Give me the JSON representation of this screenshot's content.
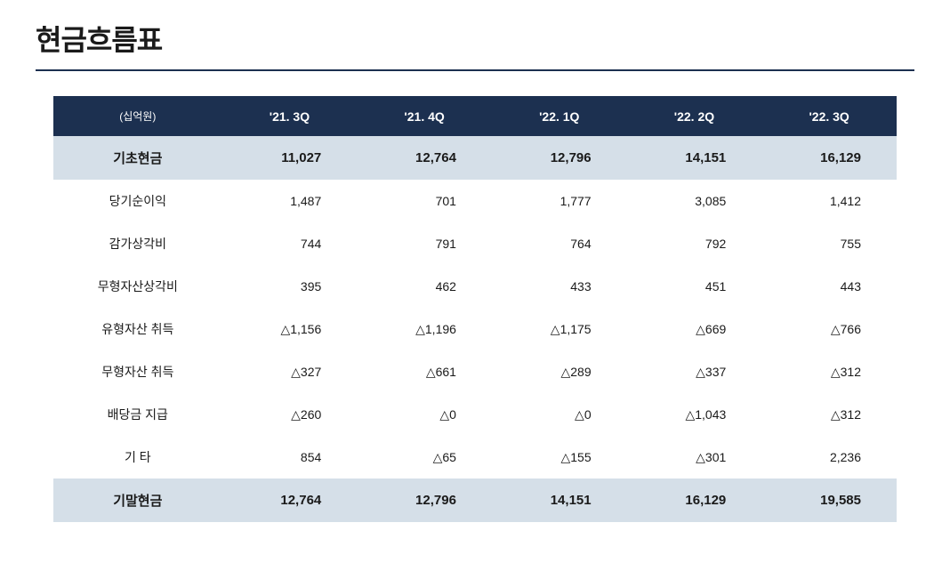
{
  "title": "현금흐름표",
  "table": {
    "unit_label": "(십억원)",
    "columns": [
      "'21. 3Q",
      "'21. 4Q",
      "'22. 1Q",
      "'22. 2Q",
      "'22. 3Q"
    ],
    "rows": [
      {
        "label": "기초현금",
        "values": [
          "11,027",
          "12,764",
          "12,796",
          "14,151",
          "16,129"
        ],
        "highlight": true
      },
      {
        "label": "당기순이익",
        "values": [
          "1,487",
          "701",
          "1,777",
          "3,085",
          "1,412"
        ],
        "highlight": false
      },
      {
        "label": "감가상각비",
        "values": [
          "744",
          "791",
          "764",
          "792",
          "755"
        ],
        "highlight": false
      },
      {
        "label": "무형자산상각비",
        "values": [
          "395",
          "462",
          "433",
          "451",
          "443"
        ],
        "highlight": false
      },
      {
        "label": "유형자산 취득",
        "values": [
          "△1,156",
          "△1,196",
          "△1,175",
          "△669",
          "△766"
        ],
        "highlight": false
      },
      {
        "label": "무형자산 취득",
        "values": [
          "△327",
          "△661",
          "△289",
          "△337",
          "△312"
        ],
        "highlight": false
      },
      {
        "label": "배당금 지급",
        "values": [
          "△260",
          "△0",
          "△0",
          "△1,043",
          "△312"
        ],
        "highlight": false
      },
      {
        "label": "기  타",
        "values": [
          "854",
          "△65",
          "△155",
          "△301",
          "2,236"
        ],
        "highlight": false
      },
      {
        "label": "기말현금",
        "values": [
          "12,764",
          "12,796",
          "14,151",
          "16,129",
          "19,585"
        ],
        "highlight": true
      }
    ]
  },
  "styling": {
    "header_bg": "#1c3050",
    "header_text": "#ffffff",
    "highlight_bg": "#d5dfe8",
    "body_bg": "#ffffff",
    "text_color": "#1a1a1a",
    "title_fontsize": 32,
    "header_fontsize": 14,
    "cell_fontsize": 14,
    "highlight_fontsize": 15,
    "underline_color": "#1c3050"
  }
}
